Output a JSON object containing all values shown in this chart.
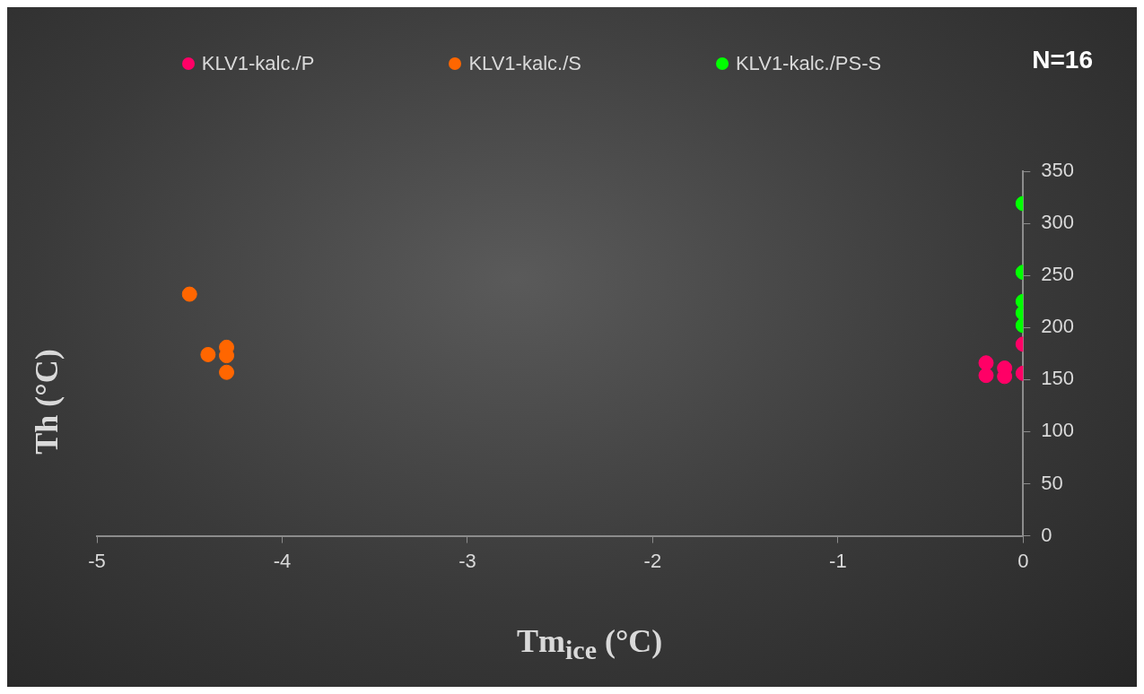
{
  "chart_data": {
    "type": "scatter",
    "xlabel": "Tm$_{ice}$ (°C)",
    "ylabel": "Th (°C)",
    "annotations": [
      "N=16"
    ],
    "xlim": [
      -5,
      0
    ],
    "xticks": [
      -5,
      -4,
      -3,
      -2,
      -1,
      0
    ],
    "ylim": [
      0,
      350
    ],
    "yticks": [
      0,
      50,
      100,
      150,
      200,
      250,
      300,
      350
    ],
    "legend": "top",
    "marker": "circle",
    "series": [
      {
        "name": "KLV1-kalc./P",
        "color": "#ff0066",
        "x": [
          0,
          0,
          -0.2,
          -0.2,
          -0.1,
          -0.1
        ],
        "values": [
          184,
          156,
          166,
          154,
          161,
          153
        ]
      },
      {
        "name": "KLV1-kalc./S",
        "color": "#ff6600",
        "x": [
          -4.5,
          -4.4,
          -4.3,
          -4.3,
          -4.3
        ],
        "values": [
          232,
          174,
          181,
          173,
          157
        ]
      },
      {
        "name": "KLV1-kalc./PS-S",
        "color": "#00ff00",
        "x": [
          0,
          0,
          0,
          0,
          0
        ],
        "values": [
          319,
          253,
          225,
          214,
          202
        ]
      }
    ]
  }
}
